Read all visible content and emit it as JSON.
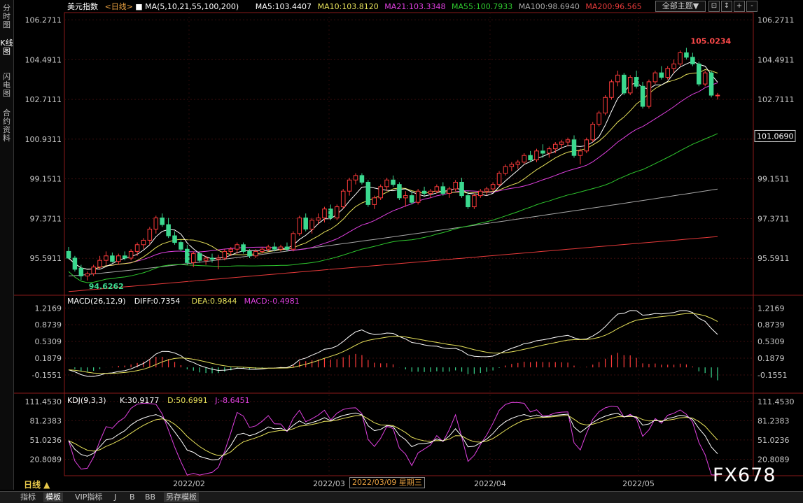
{
  "sidebar": {
    "items": [
      {
        "label": "分时图"
      },
      {
        "label": "K线图"
      },
      {
        "label": "闪电图"
      },
      {
        "label": "合约资料"
      }
    ]
  },
  "header": {
    "title": "美元指数",
    "period": "<日线>",
    "ma_label": "MA(5,10,21,55,100,200)",
    "ma5": "MA5:103.4407",
    "ma10": "MA10:103.8120",
    "ma21": "MA21:103.3348",
    "ma55": "MA55:100.7933",
    "ma100": "MA100:98.6940",
    "ma200": "MA200:96.565",
    "theme_button": "全部主题▼",
    "controls": [
      "⊡",
      "↕",
      "+",
      "-"
    ]
  },
  "colors": {
    "up": "#ff3b3b",
    "down": "#3bd98f",
    "ma5": "#ffffff",
    "ma10": "#e6e15a",
    "ma21": "#e040e0",
    "ma55": "#2ec82e",
    "ma100": "#a8a8a8",
    "ma200": "#e83a3a",
    "grid": "#7a1a1a"
  },
  "chart_data": [
    {
      "type": "candlestick",
      "name": "美元指数 日线",
      "y_ticks": [
        "106.2711",
        "104.4911",
        "102.7111",
        "100.9311",
        "99.1511",
        "97.3711",
        "95.5911"
      ],
      "ylim": [
        94.0,
        106.6
      ],
      "current_price_label": "101.0690",
      "high_label": "105.0234",
      "low_label": "94.6262",
      "x_labels": [
        "2022/02",
        "2022/03",
        "2022/04",
        "2022/05"
      ],
      "candles": [
        [
          95.9,
          96.1,
          95.55,
          95.6
        ],
        [
          95.6,
          95.7,
          95.0,
          95.1
        ],
        [
          95.15,
          95.3,
          94.62,
          94.8
        ],
        [
          94.8,
          95.0,
          94.6,
          94.9
        ],
        [
          94.9,
          95.3,
          94.8,
          95.2
        ],
        [
          95.2,
          95.7,
          95.1,
          95.5
        ],
        [
          95.5,
          95.9,
          95.3,
          95.7
        ],
        [
          95.7,
          95.85,
          95.4,
          95.45
        ],
        [
          95.45,
          95.8,
          95.3,
          95.7
        ],
        [
          95.7,
          95.9,
          95.5,
          95.6
        ],
        [
          95.6,
          96.0,
          95.5,
          95.9
        ],
        [
          95.9,
          96.3,
          95.7,
          96.2
        ],
        [
          96.2,
          96.5,
          96.0,
          96.4
        ],
        [
          96.4,
          97.0,
          96.2,
          96.9
        ],
        [
          96.9,
          97.5,
          96.7,
          97.4
        ],
        [
          97.4,
          97.6,
          97.0,
          97.1
        ],
        [
          97.1,
          97.4,
          96.5,
          96.6
        ],
        [
          96.6,
          96.8,
          96.2,
          96.3
        ],
        [
          96.3,
          96.4,
          95.9,
          96.0
        ],
        [
          96.0,
          96.2,
          95.3,
          95.4
        ],
        [
          95.4,
          95.9,
          95.2,
          95.8
        ],
        [
          95.8,
          95.9,
          95.4,
          95.5
        ],
        [
          95.5,
          95.7,
          95.3,
          95.6
        ],
        [
          95.6,
          95.8,
          95.4,
          95.55
        ],
        [
          95.55,
          95.75,
          95.1,
          95.6
        ],
        [
          95.6,
          96.0,
          95.5,
          95.9
        ],
        [
          95.9,
          96.1,
          95.7,
          96.0
        ],
        [
          96.0,
          96.3,
          95.8,
          96.2
        ],
        [
          96.2,
          96.3,
          95.8,
          95.9
        ],
        [
          95.9,
          96.0,
          95.6,
          95.7
        ],
        [
          95.7,
          96.0,
          95.6,
          95.9
        ],
        [
          95.9,
          96.1,
          95.8,
          96.0
        ],
        [
          96.0,
          96.2,
          95.9,
          96.1
        ],
        [
          96.1,
          96.3,
          95.9,
          96.0
        ],
        [
          96.0,
          96.2,
          95.9,
          96.1
        ],
        [
          96.1,
          96.3,
          95.9,
          96.0
        ],
        [
          96.0,
          96.8,
          95.9,
          96.7
        ],
        [
          96.7,
          97.5,
          96.6,
          97.4
        ],
        [
          97.4,
          97.6,
          96.8,
          96.9
        ],
        [
          96.9,
          97.4,
          96.7,
          97.3
        ],
        [
          97.3,
          97.6,
          97.1,
          97.4
        ],
        [
          97.4,
          97.9,
          97.2,
          97.8
        ],
        [
          97.8,
          98.0,
          97.3,
          97.4
        ],
        [
          97.4,
          98.0,
          97.3,
          97.9
        ],
        [
          97.9,
          98.7,
          97.8,
          98.6
        ],
        [
          98.6,
          99.2,
          98.4,
          99.1
        ],
        [
          99.1,
          99.4,
          98.9,
          99.3
        ],
        [
          99.3,
          99.4,
          98.9,
          99.0
        ],
        [
          99.0,
          99.1,
          97.9,
          98.0
        ],
        [
          98.0,
          98.4,
          97.8,
          98.3
        ],
        [
          98.3,
          98.9,
          98.2,
          98.8
        ],
        [
          98.8,
          99.2,
          98.6,
          99.1
        ],
        [
          99.1,
          99.3,
          98.8,
          98.9
        ],
        [
          98.9,
          99.0,
          98.2,
          98.3
        ],
        [
          98.3,
          98.6,
          97.9,
          98.4
        ],
        [
          98.4,
          98.6,
          98.0,
          98.1
        ],
        [
          98.1,
          98.7,
          98.0,
          98.6
        ],
        [
          98.6,
          98.8,
          98.4,
          98.5
        ],
        [
          98.5,
          98.7,
          98.3,
          98.6
        ],
        [
          98.6,
          98.9,
          98.5,
          98.8
        ],
        [
          98.8,
          99.0,
          98.4,
          98.5
        ],
        [
          98.5,
          98.8,
          98.3,
          98.7
        ],
        [
          98.7,
          99.1,
          98.6,
          99.0
        ],
        [
          99.0,
          99.2,
          98.3,
          98.4
        ],
        [
          98.4,
          98.6,
          97.8,
          97.9
        ],
        [
          97.9,
          98.5,
          97.8,
          98.4
        ],
        [
          98.4,
          98.7,
          98.3,
          98.6
        ],
        [
          98.6,
          98.8,
          98.4,
          98.7
        ],
        [
          98.7,
          99.0,
          98.6,
          98.9
        ],
        [
          98.9,
          99.5,
          98.8,
          99.4
        ],
        [
          99.4,
          99.8,
          99.3,
          99.7
        ],
        [
          99.7,
          99.9,
          99.5,
          99.8
        ],
        [
          99.8,
          100.0,
          99.6,
          99.9
        ],
        [
          99.9,
          100.3,
          99.8,
          100.2
        ],
        [
          100.2,
          100.4,
          99.9,
          100.0
        ],
        [
          100.0,
          100.5,
          99.9,
          100.4
        ],
        [
          100.4,
          100.7,
          100.1,
          100.3
        ],
        [
          100.3,
          100.6,
          100.1,
          100.5
        ],
        [
          100.5,
          100.8,
          100.3,
          100.7
        ],
        [
          100.7,
          100.9,
          100.5,
          100.8
        ],
        [
          100.8,
          101.0,
          100.6,
          100.9
        ],
        [
          100.9,
          101.1,
          100.1,
          100.2
        ],
        [
          100.2,
          100.5,
          99.8,
          100.4
        ],
        [
          100.4,
          101.0,
          100.3,
          100.9
        ],
        [
          100.9,
          101.7,
          100.8,
          101.6
        ],
        [
          101.6,
          102.2,
          101.5,
          102.1
        ],
        [
          102.1,
          102.9,
          102.0,
          102.8
        ],
        [
          102.8,
          103.6,
          102.7,
          103.5
        ],
        [
          103.5,
          104.0,
          103.3,
          103.8
        ],
        [
          103.8,
          103.9,
          102.9,
          103.0
        ],
        [
          103.0,
          103.8,
          102.9,
          103.7
        ],
        [
          103.7,
          104.0,
          103.2,
          103.3
        ],
        [
          103.3,
          103.5,
          102.3,
          102.4
        ],
        [
          102.4,
          103.6,
          102.3,
          103.5
        ],
        [
          103.5,
          104.0,
          103.4,
          103.9
        ],
        [
          103.9,
          104.2,
          103.6,
          103.7
        ],
        [
          103.7,
          104.2,
          103.6,
          104.1
        ],
        [
          104.1,
          104.5,
          103.9,
          104.3
        ],
        [
          104.3,
          104.9,
          104.2,
          104.8
        ],
        [
          104.8,
          105.02,
          104.5,
          104.6
        ],
        [
          104.6,
          104.8,
          104.2,
          104.3
        ],
        [
          104.3,
          104.4,
          103.3,
          103.4
        ],
        [
          103.4,
          104.0,
          103.3,
          103.9
        ],
        [
          103.9,
          104.0,
          102.8,
          102.9
        ],
        [
          102.9,
          103.0,
          102.7,
          102.9
        ]
      ]
    },
    {
      "type": "line",
      "name": "MACD",
      "title": "MACD(26,12,9)",
      "diff": "DIFF:0.7354",
      "dea": "DEA:0.9844",
      "macd": "MACD:-0.4981",
      "y_ticks": [
        "1.2169",
        "0.8739",
        "0.5309",
        "0.1879",
        "-0.1551"
      ],
      "ylim": [
        -0.5,
        1.45
      ]
    },
    {
      "type": "line",
      "name": "KDJ",
      "title": "KDJ(9,3,3)",
      "k": "K:30.9177",
      "d": "D:50.6991",
      "j": "J:-8.6451",
      "y_ticks": [
        "111.4530",
        "81.2383",
        "51.0236",
        "20.8089"
      ],
      "ylim": [
        -5,
        120
      ]
    }
  ],
  "footer": {
    "period_label": "日线 ▲",
    "hover_date": "2022/03/09 星期三",
    "tabs": [
      "指标",
      "模板",
      "VIP指标",
      "J",
      "B",
      "BB",
      "另存模板"
    ]
  },
  "watermark": "FX678"
}
